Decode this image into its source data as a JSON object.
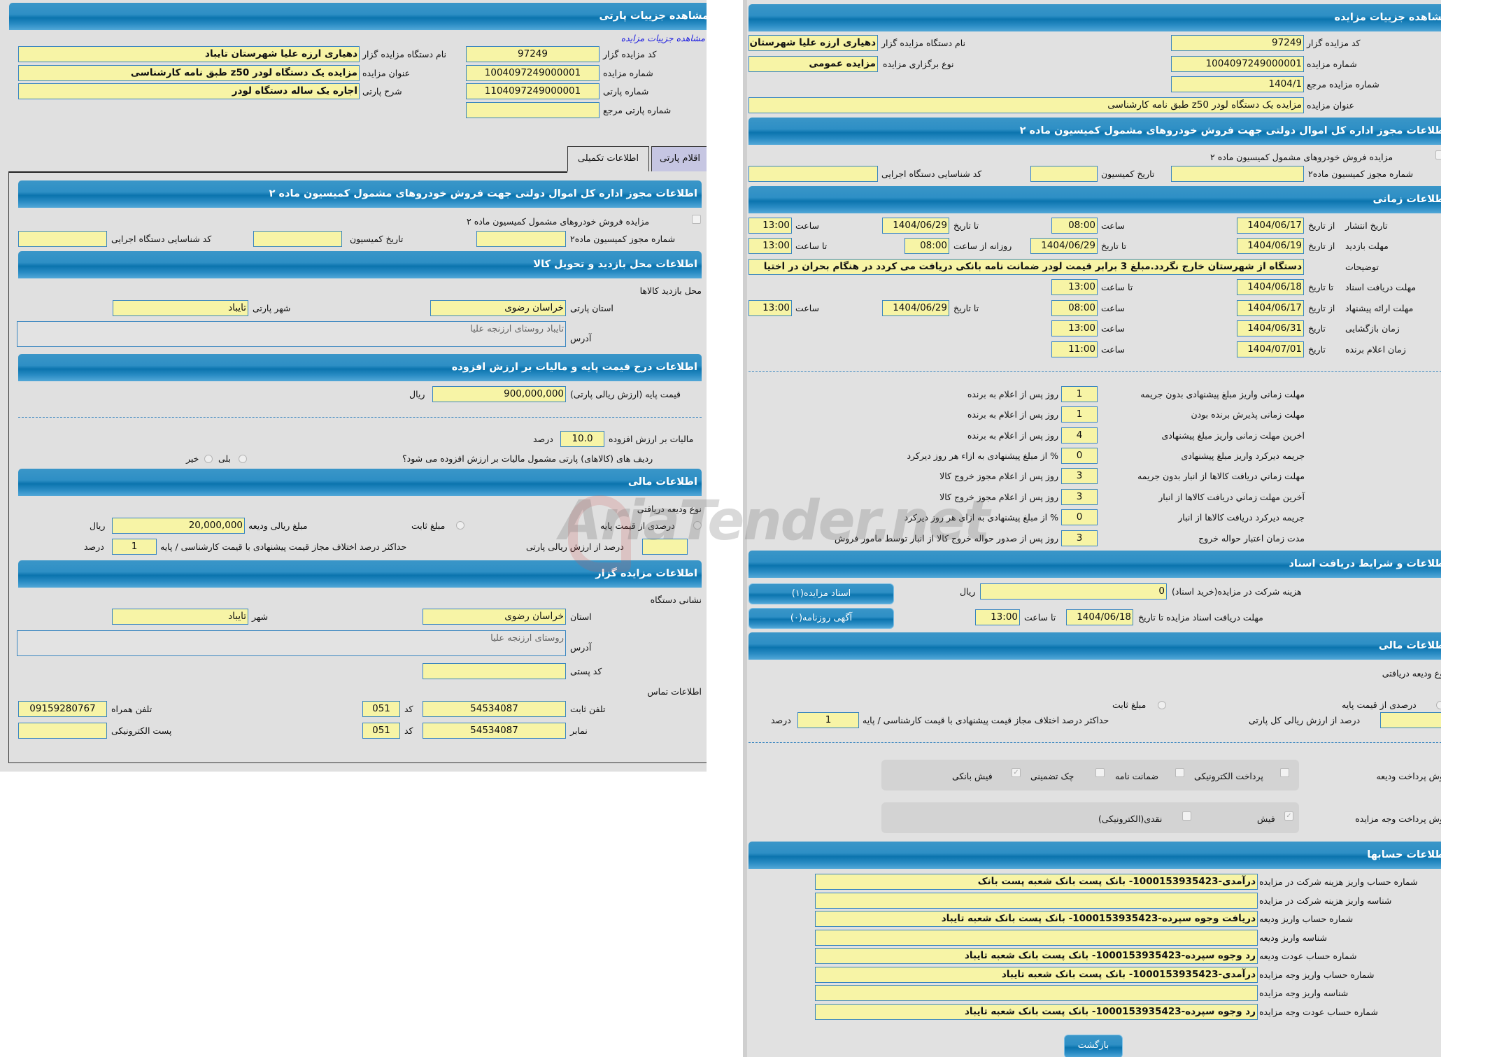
{
  "colors": {
    "header": "#0b74ae",
    "input_bg": "#f7f4a6",
    "input_border": "#3a86c0",
    "panel_bg": "#e1e1e1",
    "link": "#2020e0"
  },
  "watermark": "AriaTender.net",
  "left": {
    "title": "مشاهده جزییات پارتی",
    "link": "مشاهده جزییات مزایده",
    "code_label": "کد مزایده گزار",
    "code": "97249",
    "org_label": "نام دستگاه مزایده گزار",
    "org": "دهیاری ارزه علیا  شهرستان تایباد",
    "auction_no_label": "شماره مزایده",
    "auction_no": "1004097249000001",
    "auction_title_label": "عنوان مزایده",
    "auction_title": "مزایده یک دستگاه لودر z50 طبق نامه کارشناسی",
    "lot_no_label": "شماره پارتی",
    "lot_no": "1104097249000001",
    "lot_desc_label": "شرح پارتی",
    "lot_desc": "اجاره یک ساله دستگاه لودر",
    "lot_ref_label": "شماره پارتی مرجع",
    "lot_ref": "",
    "tabs": [
      {
        "label": "اقلام پارتی",
        "active": false
      },
      {
        "label": "اطلاعات تکمیلی",
        "active": true
      }
    ],
    "permit": {
      "title": "اطلاعات مجوز اداره کل اموال دولتی جهت فروش خودروهای مشمول کمیسیون ماده ۲",
      "checkbox_label": "مزایده فروش خودروهای مشمول کمیسیون ماده ۲",
      "checked": false,
      "permit_no_label": "شماره مجوز کمیسیون ماده۲",
      "permit_no": "",
      "date_label": "تاریخ کمیسیون",
      "date": "",
      "org_id_label": "کد شناسایی دستگاه اجرایی",
      "org_id": ""
    },
    "visit": {
      "title": "اطلاعات محل بازدید و تحویل کالا",
      "place_label": "محل بازدید کالاها",
      "province_label": "استان پارتی",
      "province": "خراسان رضوی",
      "city_label": "شهر پارتی",
      "city": "تایباد",
      "address_label": "آدرس",
      "address": "تایباد روستای ارزنجه علیا"
    },
    "price": {
      "title": "اطلاعات درج قیمت پایه و مالیات بر ارزش افزوده",
      "base_label": "قیمت پایه (ارزش ریالی پارتی)",
      "base": "900,000,000",
      "rial": "ریال",
      "vat_label": "مالیات بر ارزش افزوده",
      "vat": "10.0",
      "percent": "درصد",
      "vat_question": "ردیف های (کالاهای) پارتی مشمول مالیات بر ارزش افزوده می شود؟",
      "yes": "بلی",
      "no": "خیر"
    },
    "finance": {
      "title": "اطلاعات مالی",
      "deposit_type_label": "نوع ودیعه دریافتی",
      "opt_percent": "درصدی از قیمت پایه",
      "opt_fixed": "مبلغ ثابت",
      "deposit_amount_label": "مبلغ ریالی ودیعه",
      "deposit_amount": "20,000,000",
      "rial": "ریال",
      "percent_of_value_label": "درصد از ارزش ریالی پارتی",
      "percent_of_value": "",
      "max_diff_label": "حداکثر درصد اختلاف مجاز قیمت پیشنهادی با قیمت کارشناسی / پایه",
      "max_diff": "1",
      "percent": "درصد"
    },
    "auctioneer": {
      "title": "اطلاعات مزایده گزار",
      "address_section": "نشانی دستگاه",
      "province_label": "استان",
      "province": "خراسان رضوی",
      "city_label": "شهر",
      "city": "تایباد",
      "address_label": "آدرس",
      "address": "روستای ارزنجه علیا",
      "postal_label": "کد پستی",
      "postal": "",
      "contact_section": "اطلاعات تماس",
      "phone_label": "تلفن ثابت",
      "phone": "54534087",
      "code_label": "کد",
      "phone_code": "051",
      "mobile_label": "تلفن همراه",
      "mobile": "09159280767",
      "fax_label": "نمابر",
      "fax": "54534087",
      "fax_code": "051",
      "email_label": "پست الکترونیکی",
      "email": ""
    }
  },
  "right": {
    "title": "مشاهده جزییات مزایده",
    "code_label": "کد مزایده گزار",
    "code": "97249",
    "org_label": "نام دستگاه مزایده گزار",
    "org": "دهیاری ارزه علیا  شهرستان تایباد",
    "auction_no_label": "شماره مزایده",
    "auction_no": "1004097249000001",
    "type_label": "نوع برگزاری مزایده",
    "type": "مزایده عمومی",
    "ref_label": "شماره مزایده مرجع",
    "ref": "1404/1",
    "auction_title_label": "عنوان مزایده",
    "auction_title": "مزایده یک دستگاه لودر z50 طبق نامه کارشناسی",
    "permit": {
      "title": "اطلاعات مجوز اداره کل اموال دولتی جهت فروش خودروهای مشمول کمیسیون ماده ۲",
      "checkbox_label": "مزایده فروش خودروهای مشمول کمیسیون ماده ۲",
      "checked": false,
      "permit_no_label": "شماره مجوز کمیسیون ماده۲",
      "permit_no": "",
      "date_label": "تاریخ کمیسیون",
      "date": "",
      "org_id_label": "کد شناسایی دستگاه اجرایی",
      "org_id": ""
    },
    "timing": {
      "title": "اطلاعات زمانی",
      "publish": {
        "label": "تاریخ انتشار",
        "from_label": "از تاریخ",
        "from": "1404/06/17",
        "time_label": "ساعت",
        "time": "08:00",
        "to_label": "تا تاریخ",
        "to": "1404/06/29",
        "to_time_label": "ساعت",
        "to_time": "13:00"
      },
      "visit": {
        "label": "مهلت بازدید",
        "from_label": "از تاریخ",
        "from": "1404/06/19",
        "to_label": "تا تاریخ",
        "to": "1404/06/29",
        "daily_from_label": "روزانه از ساعت",
        "daily_from": "08:00",
        "daily_to_label": "تا ساعت",
        "daily_to": "13:00"
      },
      "notes_label": "توضیحات",
      "notes": "دستگاه از شهرستان خارج نگردد.مبلغ 3 برابر قیمت لودر ضمانت نامه بانکی دریافت می کردد در هنگام بحران در اختیا",
      "docs": {
        "label": "مهلت دریافت اسناد",
        "to_label": "تا تاریخ",
        "to": "1404/06/18",
        "time_label": "تا ساعت",
        "time": "13:00"
      },
      "offer": {
        "label": "مهلت ارائه پیشنهاد",
        "from_label": "از تاریخ",
        "from": "1404/06/17",
        "time_label": "ساعت",
        "time": "08:00",
        "to_label": "تا تاریخ",
        "to": "1404/06/29",
        "to_time_label": "ساعت",
        "to_time": "13:00"
      },
      "opening": {
        "label": "زمان بازگشایی",
        "date_label": "تاریخ",
        "date": "1404/06/31",
        "time_label": "ساعت",
        "time": "13:00"
      },
      "winner": {
        "label": "زمان اعلام برنده",
        "date_label": "تاریخ",
        "date": "1404/07/01",
        "time_label": "ساعت",
        "time": "11:00"
      }
    },
    "deadlines": [
      {
        "label": "مهلت زمانی واریز مبلغ پیشنهادی بدون جریمه",
        "value": "1",
        "suffix": "روز پس از اعلام به برنده"
      },
      {
        "label": "مهلت زمانی پذیرش برنده بودن",
        "value": "1",
        "suffix": "روز پس از اعلام به برنده"
      },
      {
        "label": "اخرین مهلت زمانی واریز مبلغ پیشنهادی",
        "value": "4",
        "suffix": "روز پس از اعلام به برنده"
      },
      {
        "label": "جریمه دیرکرد واریز مبلغ پیشنهادی",
        "value": "0",
        "suffix": "% از مبلغ پیشنهادی به ازاء هر روز دیرکرد"
      },
      {
        "label": "مهلت زماني دريافت كالاها از انبار بدون جریمه",
        "value": "3",
        "suffix": "روز پس از اعلام مجوز خروج کالا"
      },
      {
        "label": "آخرین مهلت زماني دريافت كالاها از انبار",
        "value": "3",
        "suffix": "روز پس از اعلام مجوز خروج کالا"
      },
      {
        "label": "جریمه دیرکرد دريافت كالاها از انبار",
        "value": "0",
        "suffix": "% از مبلغ پیشنهادی به ازای هر روز دیرکرد"
      },
      {
        "label": "مدت زمان اعتبار حواله خروج",
        "value": "3",
        "suffix": "روز پس از صدور حواله خروج کالا از انبار توسط مامور فروش"
      }
    ],
    "docs": {
      "title": "اطلاعات و شرایط دریافت اسناد",
      "fee_label": "هزینه شرکت در مزایده(خرید اسناد)",
      "fee": "0",
      "rial": "ریال",
      "deadline_label": "مهلت دریافت اسناد مزایده تا تاریخ",
      "deadline": "1404/06/18",
      "time_label": "تا ساعت",
      "time": "13:00",
      "docs_button": "اسناد مزایده(۱)",
      "ads_button": "آگهی روزنامه(۰)"
    },
    "finance": {
      "title": "اطلاعات مالی",
      "deposit_type_label": "نوع ودیعه دریافتی",
      "opt_percent": "درصدی از قیمت پایه",
      "opt_fixed": "مبلغ ثابت",
      "percent_of_value_label": "درصد از ارزش ریالی کل پارتی",
      "percent_of_value": "",
      "max_diff_label": "حداکثر درصد اختلاف مجاز قیمت پیشنهادی با قیمت کارشناسی / پایه",
      "max_diff": "1",
      "percent": "درصد",
      "deposit_pay_label": "روش پرداخت ودیعه",
      "deposit_methods": [
        {
          "label": "پرداخت الکترونیکی",
          "checked": false
        },
        {
          "label": "ضمانت نامه",
          "checked": false
        },
        {
          "label": "چک تضمینی",
          "checked": false
        },
        {
          "label": "فیش بانکی",
          "checked": true
        }
      ],
      "payment_label": "روش پرداخت وجه مزایده",
      "payment_methods": [
        {
          "label": "فیش",
          "checked": true
        },
        {
          "label": "نقدی(الکترونیکی)",
          "checked": false
        }
      ]
    },
    "accounts": {
      "title": "اطلاعات حسابها",
      "rows": [
        {
          "label": "شماره حساب واریز هزینه شرکت در مزایده",
          "value": "درآمدی-1000153935423- بانک پست بانک شعبه پست بانک"
        },
        {
          "label": "شناسه واریز هزینه شرکت در مزایده",
          "value": ""
        },
        {
          "label": "شماره حساب واریز ودیعه",
          "value": "دریافت وجوه سپرده-1000153935423- بانک پست بانک شعبه تایباد"
        },
        {
          "label": "شناسه واریز ودیعه",
          "value": ""
        },
        {
          "label": "شماره حساب عودت ودیعه",
          "value": "رد وجوه سپرده-1000153935423- بانک پست بانک شعبه تایباد"
        },
        {
          "label": "شماره حساب واریز وجه مزایده",
          "value": "درآمدی-1000153935423- بانک پست بانک شعبه تایباد"
        },
        {
          "label": "شناسه واریز وجه مزایده",
          "value": ""
        },
        {
          "label": "شماره حساب عودت وجه مزایده",
          "value": "رد وجوه سپرده-1000153935423- بانک پست بانک شعبه تایباد"
        }
      ]
    },
    "back_button": "بازگشت"
  }
}
